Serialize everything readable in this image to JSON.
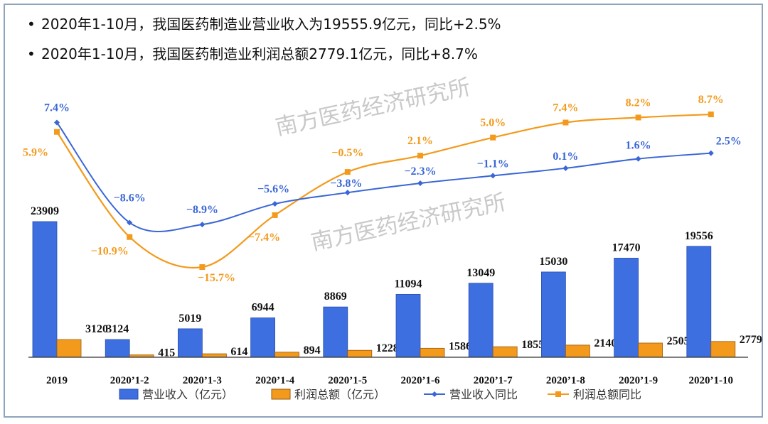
{
  "bullets": [
    "2020年1-10月，我国医药制造业营业收入为19555.9亿元，同比+2.5%",
    "2020年1-10月，我国医药制造业利润总额2779.1亿元，同比+8.7%"
  ],
  "watermark": "南方医药经济研究所",
  "chart_data": {
    "type": "bar+line",
    "categories": [
      "2019",
      "2020’1-2",
      "2020’1-3",
      "2020’1-4",
      "2020’1-5",
      "2020’1-6",
      "2020’1-7",
      "2020’1-8",
      "2020’1-9",
      "2020’1-10"
    ],
    "series": [
      {
        "name": "营业收入（亿元）",
        "type": "bar",
        "axis": "left",
        "color": "#3d6fe0",
        "values": [
          23909,
          3124,
          5019,
          6944,
          8869,
          11094,
          13049,
          15030,
          17470,
          19556
        ]
      },
      {
        "name": "利润总额（亿元）",
        "type": "bar",
        "axis": "left",
        "color": "#f39a1c",
        "values": [
          3120,
          415,
          614,
          894,
          1228,
          1586,
          1855,
          2140,
          2505,
          2779
        ]
      },
      {
        "name": "营业收入同比",
        "type": "line",
        "axis": "right",
        "color": "#3a66d6",
        "values": [
          7.4,
          -8.6,
          -8.9,
          -5.6,
          -3.8,
          -2.3,
          -1.1,
          0.1,
          1.6,
          2.5
        ]
      },
      {
        "name": "利润总额同比",
        "type": "line",
        "axis": "right",
        "color": "#f39a1c",
        "values": [
          5.9,
          -10.9,
          -15.7,
          -7.4,
          -0.5,
          2.1,
          5.0,
          7.4,
          8.2,
          8.7
        ]
      }
    ],
    "legend_position": "bottom",
    "grid": false
  }
}
